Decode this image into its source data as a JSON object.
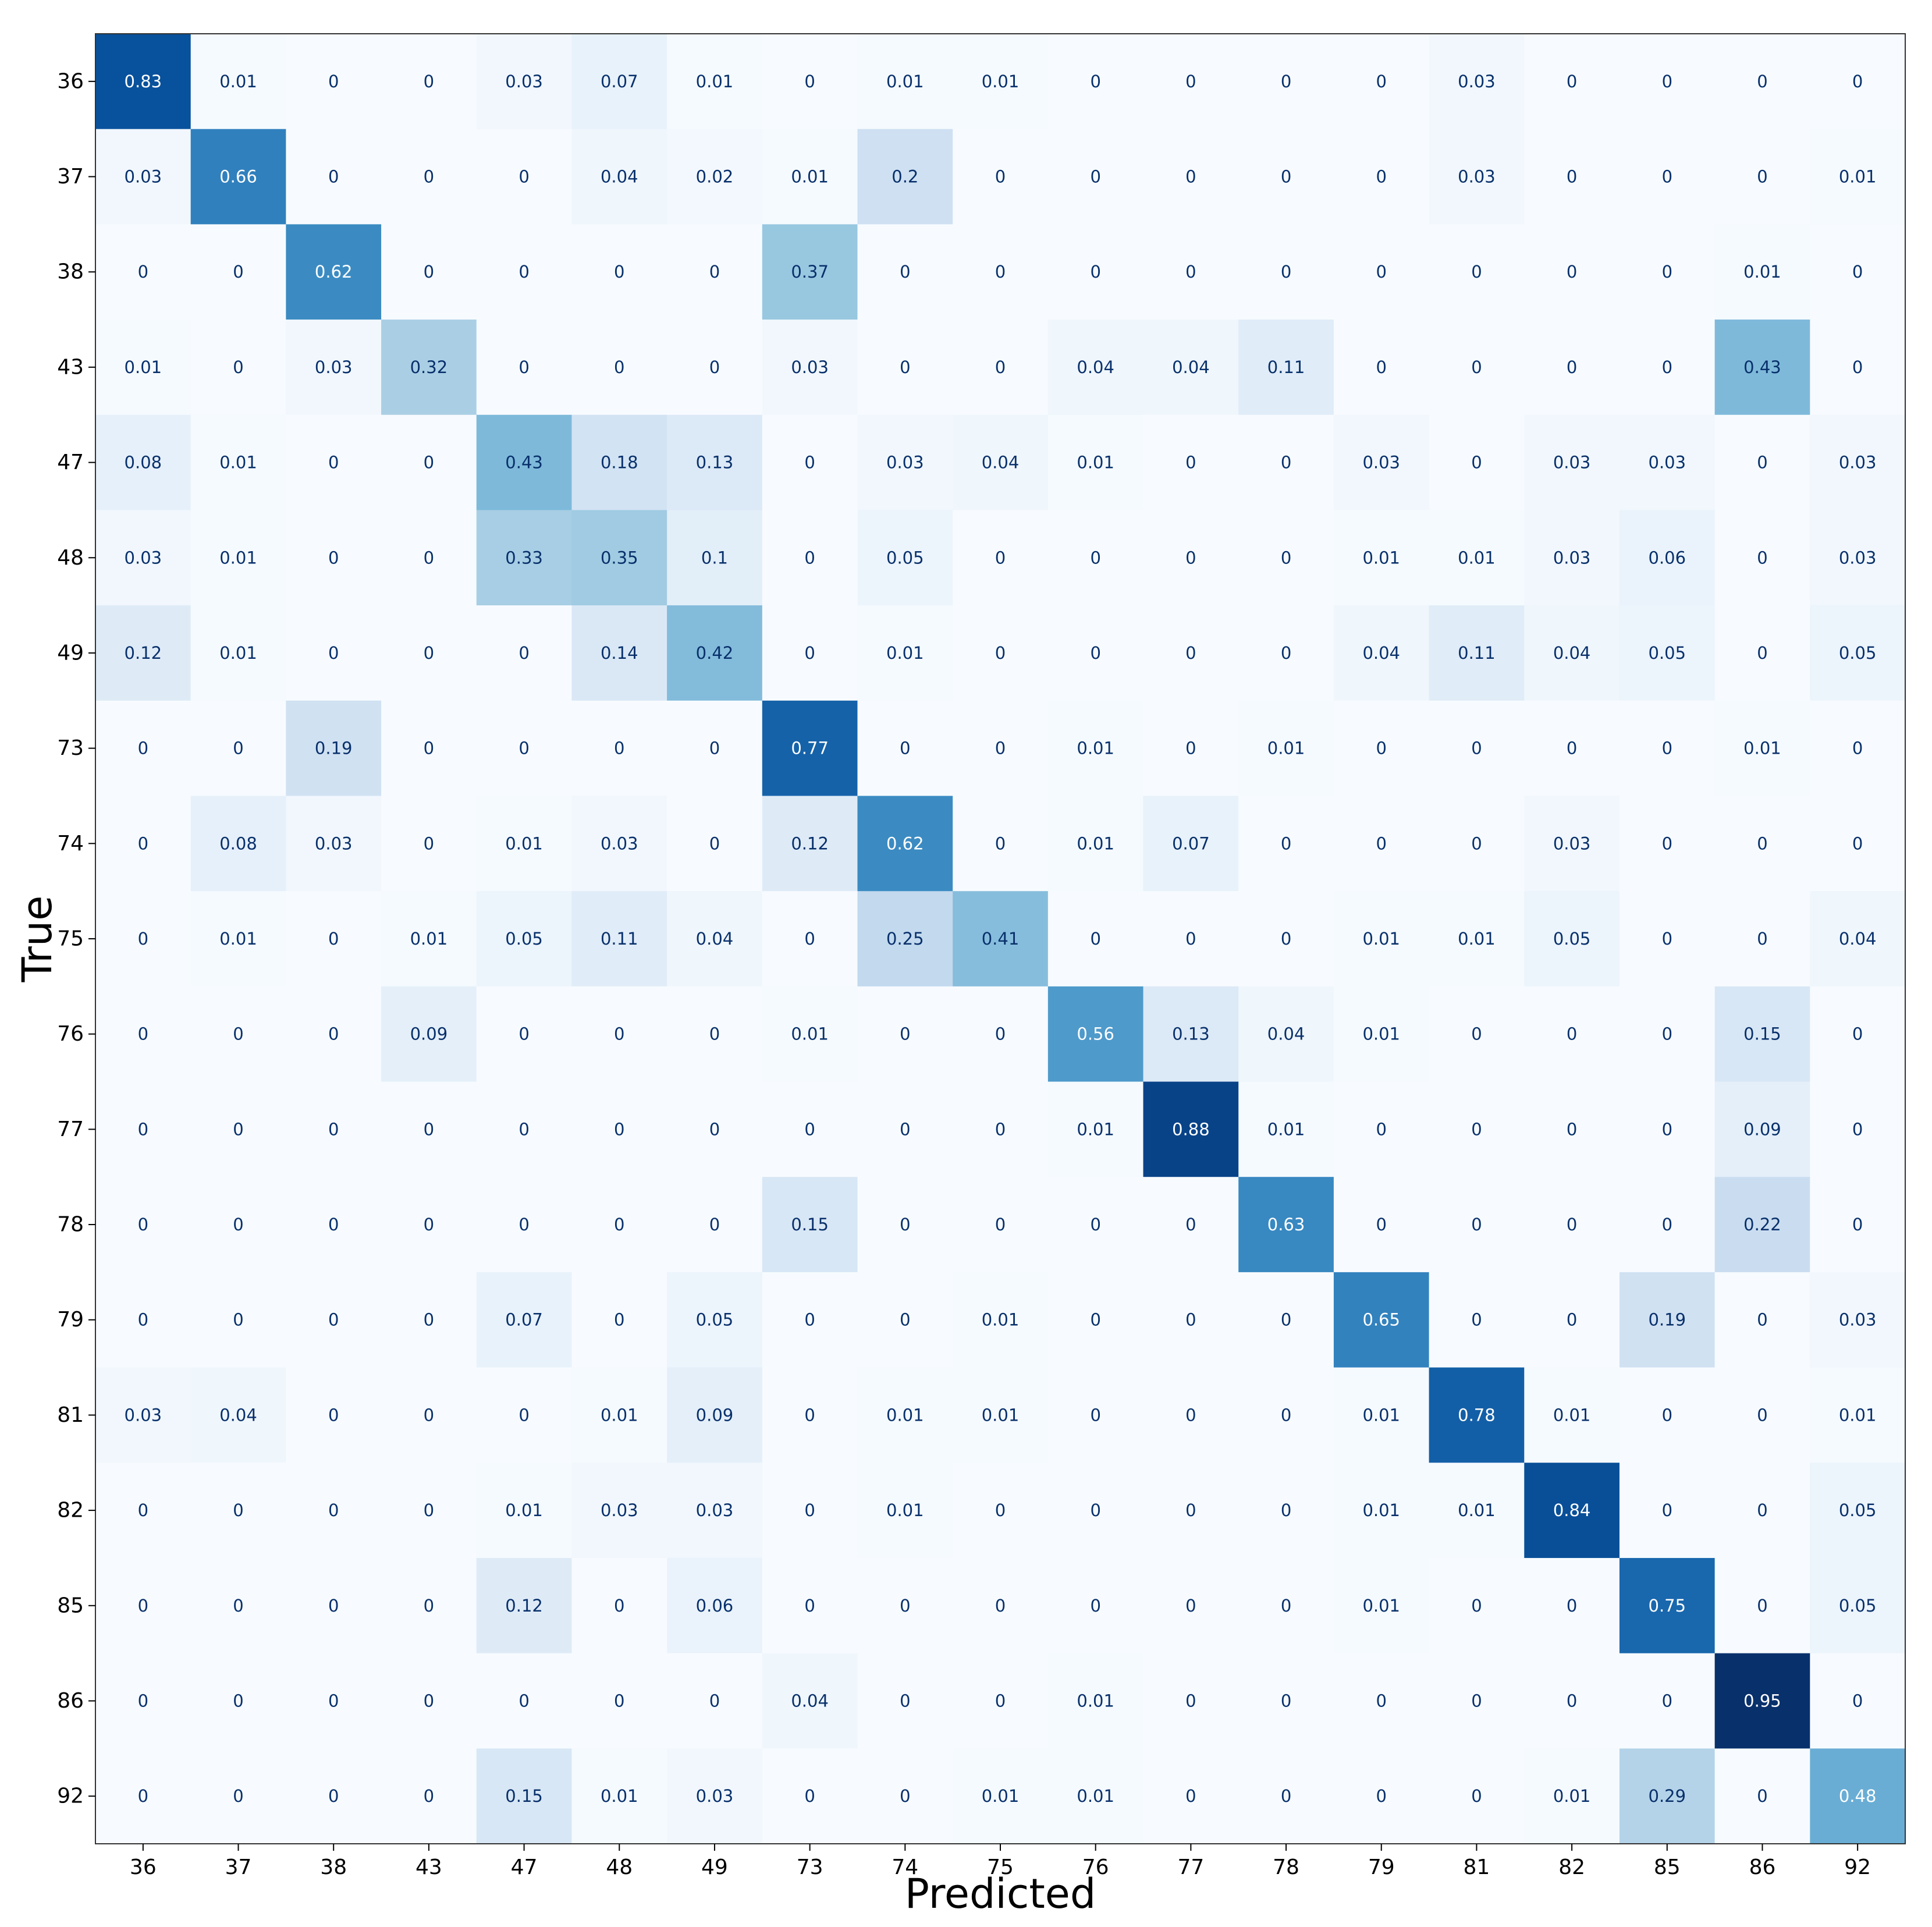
{
  "chart_data": {
    "type": "heatmap",
    "xlabel": "Predicted",
    "ylabel": "True",
    "x_categories": [
      "36",
      "37",
      "38",
      "43",
      "47",
      "48",
      "49",
      "73",
      "74",
      "75",
      "76",
      "77",
      "78",
      "79",
      "81",
      "82",
      "85",
      "86",
      "92"
    ],
    "y_categories": [
      "36",
      "37",
      "38",
      "43",
      "47",
      "48",
      "49",
      "73",
      "74",
      "75",
      "76",
      "77",
      "78",
      "79",
      "81",
      "82",
      "85",
      "86",
      "92"
    ],
    "colormap": "Blues",
    "value_range": [
      0,
      0.95
    ],
    "values": [
      [
        "0.83",
        "0.01",
        "0",
        "0",
        "0.03",
        "0.07",
        "0.01",
        "0",
        "0.01",
        "0.01",
        "0",
        "0",
        "0",
        "0",
        "0.03",
        "0",
        "0",
        "0",
        "0"
      ],
      [
        "0.03",
        "0.66",
        "0",
        "0",
        "0",
        "0.04",
        "0.02",
        "0.01",
        "0.2",
        "0",
        "0",
        "0",
        "0",
        "0",
        "0.03",
        "0",
        "0",
        "0",
        "0.01"
      ],
      [
        "0",
        "0",
        "0.62",
        "0",
        "0",
        "0",
        "0",
        "0.37",
        "0",
        "0",
        "0",
        "0",
        "0",
        "0",
        "0",
        "0",
        "0",
        "0.01",
        "0"
      ],
      [
        "0.01",
        "0",
        "0.03",
        "0.32",
        "0",
        "0",
        "0",
        "0.03",
        "0",
        "0",
        "0.04",
        "0.04",
        "0.11",
        "0",
        "0",
        "0",
        "0",
        "0.43",
        "0"
      ],
      [
        "0.08",
        "0.01",
        "0",
        "0",
        "0.43",
        "0.18",
        "0.13",
        "0",
        "0.03",
        "0.04",
        "0.01",
        "0",
        "0",
        "0.03",
        "0",
        "0.03",
        "0.03",
        "0",
        "0.03"
      ],
      [
        "0.03",
        "0.01",
        "0",
        "0",
        "0.33",
        "0.35",
        "0.1",
        "0",
        "0.05",
        "0",
        "0",
        "0",
        "0",
        "0.01",
        "0.01",
        "0.03",
        "0.06",
        "0",
        "0.03"
      ],
      [
        "0.12",
        "0.01",
        "0",
        "0",
        "0",
        "0.14",
        "0.42",
        "0",
        "0.01",
        "0",
        "0",
        "0",
        "0",
        "0.04",
        "0.11",
        "0.04",
        "0.05",
        "0",
        "0.05"
      ],
      [
        "0",
        "0",
        "0.19",
        "0",
        "0",
        "0",
        "0",
        "0.77",
        "0",
        "0",
        "0.01",
        "0",
        "0.01",
        "0",
        "0",
        "0",
        "0",
        "0.01",
        "0"
      ],
      [
        "0",
        "0.08",
        "0.03",
        "0",
        "0.01",
        "0.03",
        "0",
        "0.12",
        "0.62",
        "0",
        "0.01",
        "0.07",
        "0",
        "0",
        "0",
        "0.03",
        "0",
        "0",
        "0"
      ],
      [
        "0",
        "0.01",
        "0",
        "0.01",
        "0.05",
        "0.11",
        "0.04",
        "0",
        "0.25",
        "0.41",
        "0",
        "0",
        "0",
        "0.01",
        "0.01",
        "0.05",
        "0",
        "0",
        "0.04"
      ],
      [
        "0",
        "0",
        "0",
        "0.09",
        "0",
        "0",
        "0",
        "0.01",
        "0",
        "0",
        "0.56",
        "0.13",
        "0.04",
        "0.01",
        "0",
        "0",
        "0",
        "0.15",
        "0"
      ],
      [
        "0",
        "0",
        "0",
        "0",
        "0",
        "0",
        "0",
        "0",
        "0",
        "0",
        "0.01",
        "0.88",
        "0.01",
        "0",
        "0",
        "0",
        "0",
        "0.09",
        "0"
      ],
      [
        "0",
        "0",
        "0",
        "0",
        "0",
        "0",
        "0",
        "0.15",
        "0",
        "0",
        "0",
        "0",
        "0.63",
        "0",
        "0",
        "0",
        "0",
        "0.22",
        "0"
      ],
      [
        "0",
        "0",
        "0",
        "0",
        "0.07",
        "0",
        "0.05",
        "0",
        "0",
        "0.01",
        "0",
        "0",
        "0",
        "0.65",
        "0",
        "0",
        "0.19",
        "0",
        "0.03"
      ],
      [
        "0.03",
        "0.04",
        "0",
        "0",
        "0",
        "0.01",
        "0.09",
        "0",
        "0.01",
        "0.01",
        "0",
        "0",
        "0",
        "0.01",
        "0.78",
        "0.01",
        "0",
        "0",
        "0.01"
      ],
      [
        "0",
        "0",
        "0",
        "0",
        "0.01",
        "0.03",
        "0.03",
        "0",
        "0.01",
        "0",
        "0",
        "0",
        "0",
        "0.01",
        "0.01",
        "0.84",
        "0",
        "0",
        "0.05"
      ],
      [
        "0",
        "0",
        "0",
        "0",
        "0.12",
        "0",
        "0.06",
        "0",
        "0",
        "0",
        "0",
        "0",
        "0",
        "0.01",
        "0",
        "0",
        "0.75",
        "0",
        "0.05"
      ],
      [
        "0",
        "0",
        "0",
        "0",
        "0",
        "0",
        "0",
        "0.04",
        "0",
        "0",
        "0.01",
        "0",
        "0",
        "0",
        "0",
        "0",
        "0",
        "0.95",
        "0"
      ],
      [
        "0",
        "0",
        "0",
        "0",
        "0.15",
        "0.01",
        "0.03",
        "0",
        "0",
        "0.01",
        "0.01",
        "0",
        "0",
        "0",
        "0",
        "0.01",
        "0.29",
        "0",
        "0.48"
      ]
    ]
  }
}
